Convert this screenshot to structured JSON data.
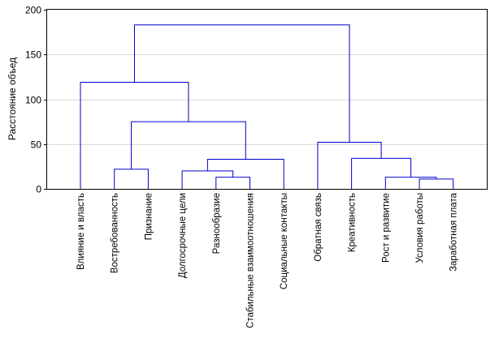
{
  "chart_data": {
    "type": "dendrogram",
    "title": "",
    "xlabel": "",
    "ylabel": "Расстояние объед",
    "ylim": [
      0,
      200
    ],
    "yticks": [
      0,
      50,
      100,
      150,
      200
    ],
    "grid": true,
    "leaves": [
      "Влияние и власть",
      "Востребованность",
      "Признание",
      "Долгосрочные цели",
      "Разнообразие",
      "Стабильные взаимоотношения",
      "Социальные контакты",
      "Обратная связь",
      "Креативность",
      "Рост и развитие",
      "Условия работы",
      "Заработная плата"
    ],
    "merges": [
      {
        "left": "L10",
        "right": "L11",
        "height": 11
      },
      {
        "left": "L9",
        "right": "C0",
        "height": 13
      },
      {
        "left": "L4",
        "right": "L5",
        "height": 13
      },
      {
        "left": "L3",
        "right": "C2",
        "height": 20
      },
      {
        "left": "L1",
        "right": "L2",
        "height": 22
      },
      {
        "left": "C3",
        "right": "L6",
        "height": 33
      },
      {
        "left": "L8",
        "right": "C1",
        "height": 34
      },
      {
        "left": "L7",
        "right": "C6",
        "height": 52
      },
      {
        "left": "C4",
        "right": "C5",
        "height": 75
      },
      {
        "left": "L0",
        "right": "C8",
        "height": 119
      },
      {
        "left": "C9",
        "right": "C7",
        "height": 183
      }
    ],
    "colors": {
      "links": "#0000cc",
      "grid": "#d8d8d8",
      "axis": "#000000"
    }
  }
}
